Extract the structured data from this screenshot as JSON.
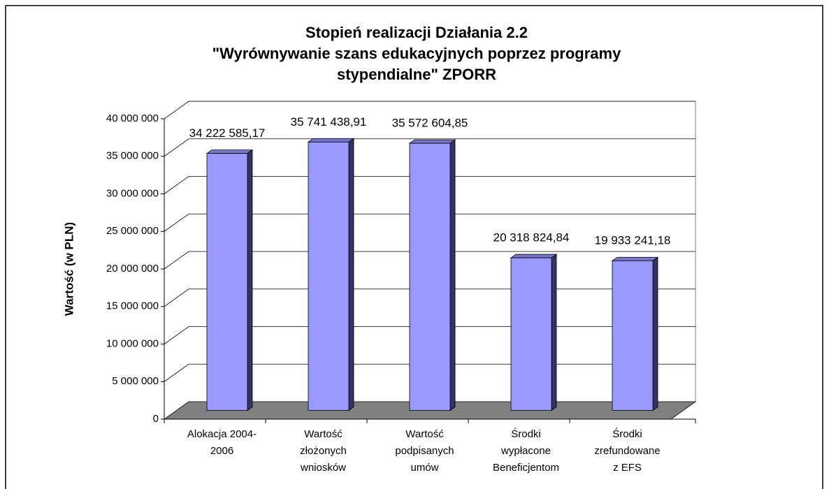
{
  "chart_data": {
    "type": "bar3d",
    "title": "Stopień realizacji Działania 2.2\n\"Wyrównywanie szans edukacyjnych poprzez programy\nstypendialne\" ZPORR",
    "y_label": "Wartość (w PLN)",
    "categories": [
      "Alokacja 2004-\n2006",
      "Wartość\nzłożonych\nwniosków",
      "Wartość\npodpisanych\numów",
      "Środki\nwypłacone\nBeneficjentom",
      "Środki\nzrefundowane\nz EFS"
    ],
    "values": [
      34222585.17,
      35741438.91,
      35572604.85,
      20318824.84,
      19933241.18
    ],
    "value_labels": [
      "34 222 585,17",
      "35 741 438,91",
      "35 572 604,85",
      "20 318 824,84",
      "19 933 241,18"
    ],
    "color": "#9999ff",
    "ylim": [
      0,
      40000000
    ],
    "yticks": [
      0,
      {
        "value": 5000000,
        "label": "5 000 000"
      },
      {
        "value": 10000000,
        "label": "10 000 000"
      },
      {
        "value": 15000000,
        "label": "15 000 000"
      },
      {
        "value": 20000000,
        "label": "20 000 000"
      },
      {
        "value": 25000000,
        "label": "25 000 000"
      },
      {
        "value": 30000000,
        "label": "30 000 000"
      },
      {
        "value": 35000000,
        "label": "35 000 000"
      },
      {
        "value": 40000000,
        "label": "40 000 000"
      }
    ],
    "grid": true
  }
}
